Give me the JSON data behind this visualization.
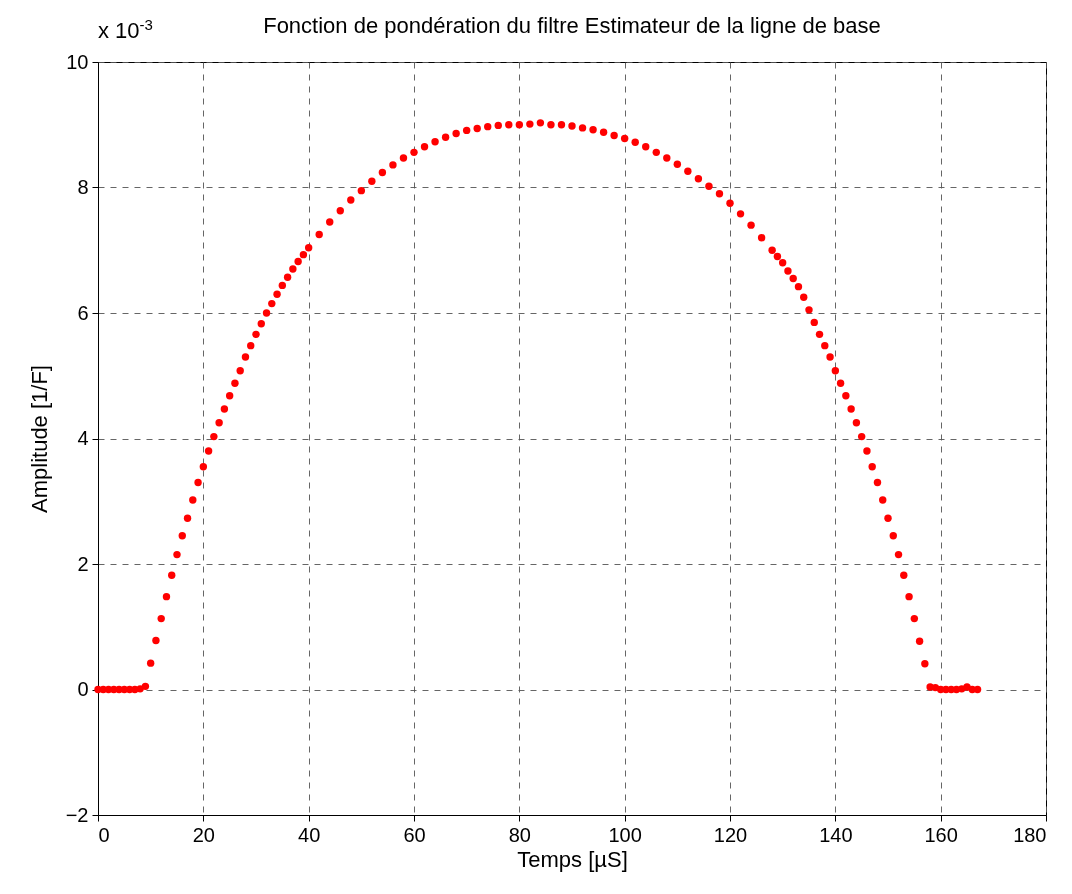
{
  "chart_data": {
    "type": "scatter",
    "title": "Fonction de pondération du filtre Estimateur de la ligne de base",
    "xlabel": "Temps [µS]",
    "ylabel": "Amplitude [1/F]",
    "annotations": [
      "x 10$^{-3}$"
    ],
    "x": [
      0,
      1,
      2,
      3,
      4,
      5,
      6,
      7,
      8,
      9,
      10,
      11,
      12,
      13,
      14,
      15,
      16,
      17,
      18,
      19,
      20,
      21,
      22,
      23,
      24,
      25,
      26,
      27,
      28,
      29,
      30,
      31,
      32,
      33,
      34,
      35,
      36,
      37,
      38,
      39,
      40,
      42,
      44,
      46,
      48,
      50,
      52,
      54,
      56,
      58,
      60,
      62,
      64,
      66,
      68,
      70,
      72,
      74,
      76,
      78,
      80,
      82,
      84,
      86,
      88,
      90,
      92,
      94,
      96,
      98,
      100,
      102,
      104,
      106,
      108,
      110,
      112,
      114,
      116,
      118,
      120,
      122,
      124,
      126,
      128,
      129,
      130,
      131,
      132,
      133,
      134,
      135,
      136,
      137,
      138,
      139,
      140,
      141,
      142,
      143,
      144,
      145,
      146,
      147,
      148,
      149,
      150,
      151,
      152,
      153,
      154,
      155,
      156,
      157,
      158,
      159,
      160,
      161,
      162,
      163,
      164,
      165,
      166,
      167
    ],
    "series": [
      {
        "color": "#ff0000",
        "values": [
          0,
          0,
          0,
          0,
          0,
          0,
          0,
          0,
          0.01,
          0.05,
          0.42,
          0.78,
          1.13,
          1.48,
          1.82,
          2.15,
          2.45,
          2.73,
          3.02,
          3.3,
          3.55,
          3.8,
          4.03,
          4.25,
          4.47,
          4.68,
          4.88,
          5.08,
          5.3,
          5.48,
          5.66,
          5.83,
          6.0,
          6.15,
          6.3,
          6.44,
          6.57,
          6.7,
          6.82,
          6.93,
          7.04,
          7.25,
          7.45,
          7.63,
          7.8,
          7.95,
          8.1,
          8.24,
          8.36,
          8.47,
          8.56,
          8.65,
          8.73,
          8.8,
          8.86,
          8.91,
          8.94,
          8.97,
          8.99,
          9.0,
          9.0,
          9.01,
          9.03,
          9.0,
          9.0,
          8.98,
          8.95,
          8.92,
          8.88,
          8.83,
          8.78,
          8.72,
          8.65,
          8.56,
          8.47,
          8.37,
          8.26,
          8.14,
          8.02,
          7.9,
          7.75,
          7.58,
          7.4,
          7.2,
          7.0,
          6.9,
          6.8,
          6.67,
          6.55,
          6.42,
          6.25,
          6.05,
          5.85,
          5.66,
          5.48,
          5.3,
          5.08,
          4.88,
          4.68,
          4.47,
          4.25,
          4.03,
          3.8,
          3.55,
          3.3,
          3.02,
          2.73,
          2.45,
          2.15,
          1.82,
          1.48,
          1.13,
          0.77,
          0.41,
          0.04,
          0.03,
          0,
          0,
          0,
          0,
          0.01,
          0.04,
          0,
          0
        ]
      }
    ],
    "xlim": [
      0,
      180
    ],
    "xticks": [
      0,
      20,
      40,
      60,
      80,
      100,
      120,
      140,
      160,
      180
    ],
    "ylim": [
      -2,
      10
    ],
    "yticks": [
      -2,
      0,
      2,
      4,
      6,
      8,
      10
    ],
    "grid": true,
    "marker": "circle"
  }
}
